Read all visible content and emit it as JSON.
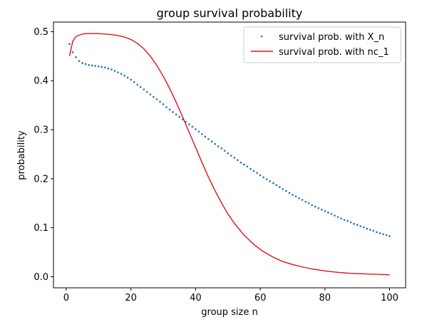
{
  "chart_data": {
    "type": "scatter",
    "title": "group survival probability",
    "xlabel": "group size n",
    "ylabel": "probability",
    "xlim": [
      -3.95,
      104.95
    ],
    "ylim": [
      -0.0225,
      0.5195
    ],
    "xticks": [
      0,
      20,
      40,
      60,
      80,
      100
    ],
    "yticks": [
      0.0,
      0.1,
      0.2,
      0.3,
      0.4,
      0.5
    ],
    "xtick_labels": [
      "0",
      "20",
      "40",
      "60",
      "80",
      "100"
    ],
    "ytick_labels": [
      "0.0",
      "0.1",
      "0.2",
      "0.3",
      "0.4",
      "0.5"
    ],
    "legend_position": "top-right",
    "series": [
      {
        "name": "survival prob. with X_n",
        "kind": "scatter",
        "color": "#1f77b4",
        "x": [
          1,
          2,
          3,
          4,
          5,
          6,
          7,
          8,
          9,
          10,
          11,
          12,
          13,
          14,
          15,
          16,
          17,
          18,
          19,
          20,
          21,
          22,
          23,
          24,
          25,
          26,
          27,
          28,
          29,
          30,
          31,
          32,
          33,
          34,
          35,
          36,
          37,
          38,
          39,
          40,
          41,
          42,
          43,
          44,
          45,
          46,
          47,
          48,
          49,
          50,
          51,
          52,
          53,
          54,
          55,
          56,
          57,
          58,
          59,
          60,
          61,
          62,
          63,
          64,
          65,
          66,
          67,
          68,
          69,
          70,
          71,
          72,
          73,
          74,
          75,
          76,
          77,
          78,
          79,
          80,
          81,
          82,
          83,
          84,
          85,
          86,
          87,
          88,
          89,
          90,
          91,
          92,
          93,
          94,
          95,
          96,
          97,
          98,
          99,
          100
        ],
        "y": [
          0.475,
          0.458,
          0.448,
          0.44,
          0.436,
          0.434,
          0.432,
          0.431,
          0.43,
          0.429,
          0.428,
          0.427,
          0.425,
          0.423,
          0.42,
          0.417,
          0.414,
          0.41,
          0.406,
          0.402,
          0.397,
          0.392,
          0.387,
          0.382,
          0.377,
          0.372,
          0.367,
          0.362,
          0.357,
          0.352,
          0.346,
          0.341,
          0.336,
          0.331,
          0.326,
          0.321,
          0.316,
          0.311,
          0.306,
          0.301,
          0.296,
          0.291,
          0.286,
          0.281,
          0.276,
          0.271,
          0.266,
          0.262,
          0.257,
          0.252,
          0.247,
          0.243,
          0.238,
          0.233,
          0.229,
          0.225,
          0.22,
          0.216,
          0.212,
          0.207,
          0.203,
          0.199,
          0.195,
          0.191,
          0.187,
          0.183,
          0.179,
          0.175,
          0.171,
          0.167,
          0.164,
          0.16,
          0.157,
          0.153,
          0.15,
          0.146,
          0.143,
          0.14,
          0.137,
          0.134,
          0.131,
          0.128,
          0.125,
          0.122,
          0.119,
          0.116,
          0.114,
          0.111,
          0.108,
          0.106,
          0.103,
          0.101,
          0.098,
          0.096,
          0.094,
          0.091,
          0.089,
          0.087,
          0.085,
          0.083
        ]
      },
      {
        "name": "survival prob. with nc_1",
        "kind": "line",
        "color": "#e3121b",
        "x": [
          1,
          2,
          3,
          4,
          5,
          6,
          7,
          8,
          10,
          12,
          14,
          16,
          18,
          20,
          22,
          24,
          26,
          28,
          30,
          32,
          34,
          36,
          38,
          40,
          42,
          44,
          46,
          48,
          50,
          52,
          55,
          58,
          61,
          64,
          67,
          70,
          73,
          76,
          80,
          84,
          88,
          92,
          96,
          100
        ],
        "y": [
          0.45,
          0.48,
          0.49,
          0.493,
          0.495,
          0.496,
          0.496,
          0.496,
          0.496,
          0.495,
          0.494,
          0.492,
          0.489,
          0.484,
          0.476,
          0.465,
          0.45,
          0.431,
          0.409,
          0.384,
          0.356,
          0.326,
          0.295,
          0.264,
          0.233,
          0.203,
          0.176,
          0.151,
          0.128,
          0.109,
          0.085,
          0.066,
          0.051,
          0.04,
          0.031,
          0.025,
          0.02,
          0.016,
          0.012,
          0.009,
          0.007,
          0.006,
          0.005,
          0.004
        ]
      }
    ]
  }
}
